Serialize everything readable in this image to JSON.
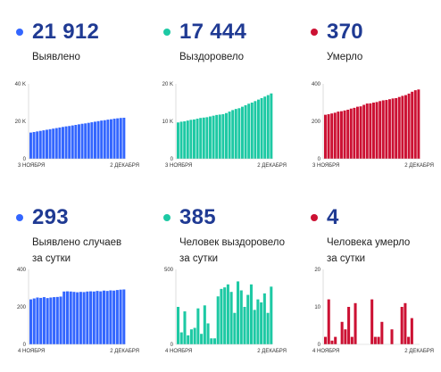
{
  "panels": [
    {
      "value": "21 912",
      "label": [
        "Выявлено"
      ],
      "color": "#3366ff",
      "chart_data": {
        "type": "bar",
        "x_start": "3 НОЯБРЯ",
        "x_end": "2 ДЕКАБРЯ",
        "yticks": [
          0,
          20000,
          40000
        ],
        "ytick_labels": [
          "0",
          "20 K",
          "40 K"
        ],
        "ylim": [
          0,
          40000
        ],
        "values": [
          14000,
          14300,
          14600,
          14900,
          15200,
          15500,
          15800,
          16100,
          16400,
          16700,
          17000,
          17300,
          17500,
          17800,
          18100,
          18400,
          18700,
          18900,
          19200,
          19500,
          19800,
          20100,
          20400,
          20600,
          20900,
          21100,
          21400,
          21600,
          21800,
          21912
        ]
      }
    },
    {
      "value": "17 444",
      "label": [
        "Выздоровело"
      ],
      "color": "#1dc9a4",
      "chart_data": {
        "type": "bar",
        "x_start": "3 НОЯБРЯ",
        "x_end": "2 ДЕКАБРЯ",
        "yticks": [
          0,
          10000,
          20000
        ],
        "ytick_labels": [
          "0",
          "10 K",
          "20 K"
        ],
        "ylim": [
          0,
          20000
        ],
        "values": [
          9700,
          9900,
          10000,
          10200,
          10400,
          10500,
          10700,
          10900,
          11000,
          11100,
          11300,
          11500,
          11700,
          11800,
          11900,
          12200,
          12600,
          13000,
          13300,
          13500,
          13900,
          14300,
          14700,
          15000,
          15400,
          15800,
          16200,
          16600,
          17000,
          17444
        ]
      }
    },
    {
      "value": "370",
      "label": [
        "Умерло"
      ],
      "color": "#cc1133",
      "chart_data": {
        "type": "bar",
        "x_start": "3 НОЯБРЯ",
        "x_end": "2 ДЕКАБРЯ",
        "yticks": [
          0,
          200,
          400
        ],
        "ytick_labels": [
          "0",
          "200",
          "400"
        ],
        "ylim": [
          0,
          400
        ],
        "values": [
          235,
          238,
          242,
          246,
          252,
          254,
          258,
          262,
          268,
          272,
          278,
          280,
          288,
          295,
          296,
          300,
          303,
          308,
          312,
          314,
          318,
          322,
          324,
          330,
          336,
          340,
          348,
          358,
          366,
          370
        ]
      }
    },
    {
      "value": "293",
      "label": [
        "Выявлено случаев",
        "за сутки"
      ],
      "color": "#3366ff",
      "chart_data": {
        "type": "bar",
        "x_start": "4 НОЯБРЯ",
        "x_end": "2 ДЕКАБРЯ",
        "yticks": [
          0,
          200,
          400
        ],
        "ytick_labels": [
          "0",
          "200",
          "400"
        ],
        "ylim": [
          0,
          400
        ],
        "values": [
          240,
          245,
          250,
          248,
          252,
          247,
          250,
          252,
          253,
          255,
          282,
          283,
          282,
          280,
          278,
          280,
          279,
          282,
          283,
          282,
          285,
          283,
          287,
          285,
          288,
          287,
          290,
          292,
          293
        ]
      }
    },
    {
      "value": "385",
      "label": [
        "Человек выздоровело",
        "за сутки"
      ],
      "color": "#1dc9a4",
      "chart_data": {
        "type": "bar",
        "x_start": "4 НОЯБРЯ",
        "x_end": "2 ДЕКАБРЯ",
        "yticks": [
          0,
          500
        ],
        "ytick_labels": [
          "0",
          "500"
        ],
        "ylim": [
          0,
          500
        ],
        "values": [
          250,
          80,
          220,
          60,
          100,
          110,
          240,
          70,
          260,
          140,
          40,
          40,
          320,
          370,
          380,
          400,
          350,
          210,
          420,
          360,
          250,
          330,
          400,
          230,
          300,
          280,
          340,
          210,
          385
        ]
      }
    },
    {
      "value": "4",
      "label": [
        "Человека умерло",
        "за сутки"
      ],
      "color": "#cc1133",
      "chart_data": {
        "type": "bar",
        "x_start": "4 НОЯБРЯ",
        "x_end": "2 ДЕКАБРЯ",
        "yticks": [
          0,
          10,
          20
        ],
        "ytick_labels": [
          "0",
          "10",
          "20"
        ],
        "ylim": [
          0,
          20
        ],
        "values": [
          2,
          12,
          1,
          2,
          0,
          6,
          4,
          10,
          2,
          11,
          0,
          0,
          0,
          0,
          12,
          2,
          2,
          6,
          0,
          0,
          4,
          0,
          0,
          10,
          11,
          2,
          7,
          0,
          0
        ]
      }
    }
  ]
}
